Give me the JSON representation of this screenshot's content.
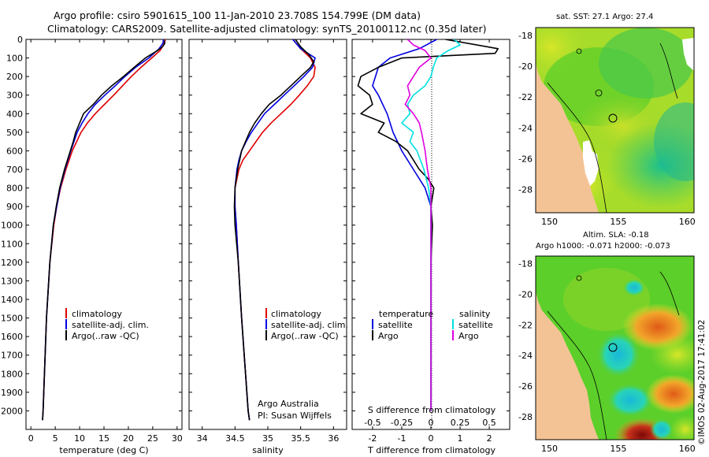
{
  "header": {
    "title_line1": "Argo profile: csiro 5901615_100 11-Jan-2010 23.708S 154.799E (DM data)",
    "title_line2": "Climatology: CARS2009. Satellite-adjusted climatology: synTS_20100112.nc (0.35d later)"
  },
  "map_top": {
    "title": "sat. SST: 27.1  Argo: 27.4"
  },
  "map_bottom": {
    "title1": "Altim. SLA: -0.18",
    "title2": "Argo h1000: -0.071 h2000: -0.073"
  },
  "stamp": "©IMOS 02-Aug-2017 17:41:02",
  "annotations": {
    "line1": "Argo Australia",
    "line2": "PI: Susan Wijffels"
  },
  "colors": {
    "climatology": "#e00000",
    "satellite": "#0000e0",
    "argo": "#000000",
    "salinity_satellite": "#00e0e0",
    "salinity_argo": "#e000e0",
    "land": "#f4c395",
    "ocean_base": "#5ccf2a"
  },
  "chart_data": [
    {
      "type": "line",
      "panel": "temperature",
      "xlabel": "temperature (deg C)",
      "ylabel": "",
      "xlim": [
        -1,
        31
      ],
      "ylim": [
        2100,
        0
      ],
      "x_ticks": [
        "0",
        "5",
        "10",
        "15",
        "20",
        "25",
        "30"
      ],
      "y_ticks": [
        "0",
        "100",
        "200",
        "300",
        "400",
        "500",
        "600",
        "700",
        "800",
        "900",
        "1000",
        "1100",
        "1200",
        "1300",
        "1400",
        "1500",
        "1600",
        "1700",
        "1800",
        "1900",
        "2000"
      ],
      "legend": [
        "climatology",
        "satellite-adj. clim.",
        "Argo(..raw -QC)"
      ],
      "legend_position": "lower-left",
      "series": [
        {
          "name": "climatology",
          "depth": [
            0,
            30,
            60,
            100,
            150,
            200,
            250,
            300,
            350,
            400,
            450,
            500,
            600,
            700,
            800,
            900,
            1000,
            1200,
            1500,
            2000,
            2050
          ],
          "values": [
            27.6,
            27.2,
            26.5,
            24.8,
            22.6,
            20.6,
            18.8,
            17.0,
            15.1,
            13.2,
            11.6,
            10.3,
            8.5,
            7.2,
            6.1,
            5.3,
            4.7,
            3.9,
            3.2,
            2.5,
            2.4
          ]
        },
        {
          "name": "satellite-adj. clim.",
          "depth": [
            0,
            20,
            50,
            100,
            150,
            200,
            250,
            300,
            350,
            400,
            450,
            500,
            600,
            700,
            800,
            900,
            1000,
            1200,
            1500,
            2000,
            2050
          ],
          "values": [
            27.2,
            27.1,
            26.3,
            24.2,
            21.5,
            19.3,
            17.3,
            15.2,
            13.2,
            11.7,
            10.5,
            9.5,
            8.2,
            7.0,
            6.0,
            5.3,
            4.6,
            3.9,
            3.2,
            2.5,
            2.4
          ]
        },
        {
          "name": "Argo(..raw -QC)",
          "depth": [
            5,
            20,
            40,
            60,
            100,
            150,
            200,
            250,
            300,
            350,
            400,
            450,
            500,
            550,
            600,
            700,
            800,
            900,
            1000,
            1200,
            1500,
            2000,
            2050
          ],
          "values": [
            27.4,
            27.5,
            27.0,
            26.0,
            23.5,
            21.2,
            19.0,
            16.6,
            14.5,
            12.8,
            10.8,
            10.0,
            9.2,
            8.7,
            8.1,
            6.9,
            5.9,
            5.2,
            4.6,
            3.9,
            3.2,
            2.5,
            2.4
          ]
        }
      ]
    },
    {
      "type": "line",
      "panel": "salinity",
      "xlabel": "salinity",
      "ylabel": "",
      "xlim": [
        33.8,
        36.2
      ],
      "ylim": [
        2100,
        0
      ],
      "x_ticks": [
        "34",
        "34.5",
        "35",
        "35.5",
        "36"
      ],
      "legend": [
        "climatology",
        "satellite-adj. clim.",
        "Argo(..raw -QC)"
      ],
      "legend_position": "lower-right",
      "series": [
        {
          "name": "climatology",
          "depth": [
            0,
            50,
            100,
            150,
            200,
            250,
            300,
            350,
            400,
            450,
            500,
            550,
            600,
            650,
            700,
            800,
            900,
            1000,
            1200,
            1500,
            2000,
            2050
          ],
          "values": [
            35.38,
            35.5,
            35.65,
            35.72,
            35.7,
            35.6,
            35.48,
            35.35,
            35.2,
            35.05,
            34.92,
            34.82,
            34.72,
            34.62,
            34.56,
            34.5,
            34.5,
            34.52,
            34.55,
            34.6,
            34.7,
            34.72
          ]
        },
        {
          "name": "satellite-adj. clim.",
          "depth": [
            0,
            50,
            100,
            150,
            200,
            250,
            300,
            350,
            400,
            450,
            500,
            550,
            600,
            650,
            700,
            800,
            900,
            1000,
            1200,
            1500,
            2000,
            2050
          ],
          "values": [
            35.38,
            35.5,
            35.72,
            35.68,
            35.55,
            35.4,
            35.25,
            35.1,
            34.95,
            34.85,
            34.75,
            34.67,
            34.6,
            34.56,
            34.53,
            34.5,
            34.5,
            34.52,
            34.55,
            34.6,
            34.7,
            34.72
          ]
        },
        {
          "name": "Argo(..raw -QC)",
          "depth": [
            0,
            40,
            80,
            120,
            150,
            200,
            250,
            300,
            350,
            400,
            450,
            500,
            550,
            600,
            700,
            800,
            900,
            1000,
            1200,
            1500,
            2000,
            2050
          ],
          "values": [
            35.42,
            35.5,
            35.62,
            35.7,
            35.65,
            35.5,
            35.35,
            35.2,
            35.02,
            34.9,
            34.8,
            34.72,
            34.66,
            34.6,
            34.54,
            34.5,
            34.49,
            34.5,
            34.55,
            34.6,
            34.7,
            34.72
          ]
        }
      ]
    },
    {
      "type": "line",
      "panel": "difference",
      "xlabel": "T difference from climatology",
      "xlabel_top": "S difference from climatology",
      "xlim": [
        -2.7,
        2.7
      ],
      "ylim": [
        2100,
        0
      ],
      "x_ticks": [
        "-2",
        "-1",
        "0",
        "1",
        "2"
      ],
      "x_ticks_top": [
        "-0.5",
        "-0.25",
        "0",
        "0.25",
        "0.5"
      ],
      "legend": [
        "temperature",
        "salinity",
        "satellite",
        "Argo",
        "satellite",
        "Argo"
      ],
      "series": [
        {
          "name": "satellite",
          "group": "temperature",
          "depth": [
            0,
            50,
            100,
            150,
            200,
            250,
            300,
            400,
            500,
            600,
            700,
            800,
            900,
            1000,
            1200,
            1500,
            2000
          ],
          "values": [
            0.2,
            -0.4,
            -1.4,
            -1.8,
            -1.9,
            -2.0,
            -1.8,
            -1.5,
            -1.3,
            -1.0,
            -0.6,
            -0.2,
            0.0,
            0.0,
            0.0,
            0.0,
            0.0
          ]
        },
        {
          "name": "Argo",
          "group": "temperature",
          "depth": [
            0,
            50,
            75,
            100,
            150,
            200,
            250,
            300,
            350,
            400,
            450,
            500,
            550,
            600,
            650,
            700,
            750,
            800,
            900,
            1000,
            1200,
            1500,
            2000
          ],
          "values": [
            0.5,
            2.3,
            2.2,
            -1.0,
            -1.8,
            -2.4,
            -2.5,
            -2.1,
            -2.0,
            -2.4,
            -1.6,
            -1.8,
            -1.2,
            -0.8,
            -0.6,
            -0.4,
            -0.1,
            0.1,
            0.0,
            0.05,
            0.0,
            0.0,
            0.0
          ]
        },
        {
          "name": "satellite",
          "group": "salinity",
          "depth": [
            0,
            30,
            60,
            100,
            150,
            200,
            250,
            300,
            350,
            400,
            450,
            500,
            550,
            600,
            700,
            800,
            900,
            1000,
            1500,
            2000
          ],
          "values": [
            0.2,
            0.25,
            0.15,
            0.05,
            0.02,
            0.0,
            -0.05,
            -0.15,
            -0.2,
            -0.18,
            -0.25,
            -0.15,
            -0.18,
            -0.12,
            -0.06,
            -0.02,
            0.0,
            0.0,
            0.0,
            0.0
          ]
        },
        {
          "name": "Argo",
          "group": "salinity",
          "depth": [
            0,
            30,
            60,
            100,
            150,
            200,
            250,
            300,
            350,
            400,
            450,
            500,
            600,
            700,
            800,
            900,
            1000,
            1500,
            2000
          ],
          "values": [
            -0.2,
            -0.15,
            -0.05,
            0.0,
            -0.1,
            -0.15,
            -0.2,
            -0.18,
            -0.22,
            -0.15,
            -0.1,
            -0.08,
            -0.05,
            -0.03,
            0.0,
            0.0,
            0.0,
            0.0,
            0.0
          ]
        }
      ]
    },
    {
      "type": "heatmap",
      "panel": "map_sst",
      "title": "sat. SST: 27.1  Argo: 27.4",
      "x_ticks": [
        "150",
        "155",
        "160"
      ],
      "y_ticks": [
        "-18",
        "-20",
        "-22",
        "-24",
        "-26",
        "-28"
      ],
      "xlim": [
        149,
        160.5
      ],
      "ylim": [
        -29.5,
        -17.5
      ],
      "argo_position": [
        154.799,
        -23.708
      ]
    },
    {
      "type": "heatmap",
      "panel": "map_sla",
      "title": "Altim. SLA: -0.18",
      "x_ticks": [
        "150",
        "155",
        "160"
      ],
      "y_ticks": [
        "-18",
        "-20",
        "-22",
        "-24",
        "-26",
        "-28"
      ],
      "xlim": [
        149,
        160.5
      ],
      "ylim": [
        -29.5,
        -17.5
      ],
      "argo_position": [
        154.799,
        -23.708
      ]
    }
  ]
}
